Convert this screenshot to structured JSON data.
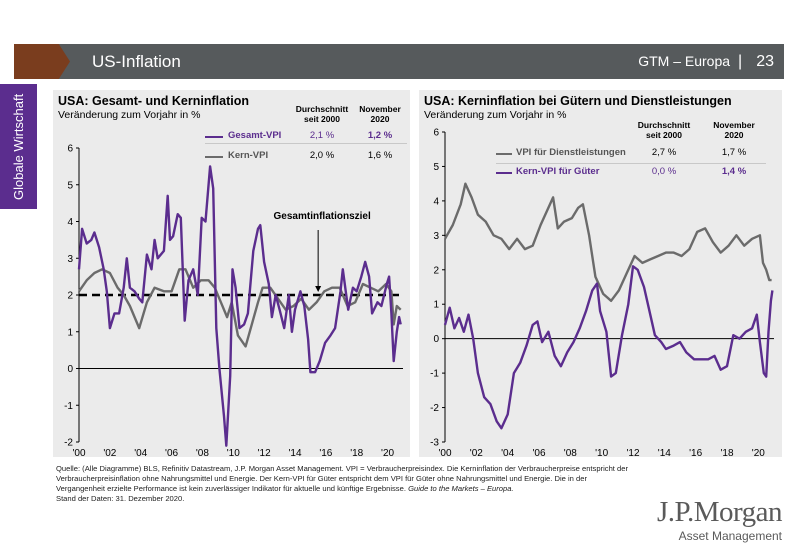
{
  "header": {
    "title": "US-Inflation",
    "right_label": "GTM – Europa",
    "separator": "|",
    "page_number": "23",
    "colors": {
      "bar": "#565a5c",
      "arrow": "#7a3d1e"
    }
  },
  "side_tab": {
    "label": "Globale Wirtschaft",
    "color": "#5b2d8e"
  },
  "source_text": "Quelle: (Alle Diagramme) BLS, Refinitiv Datastream, J.P. Morgan Asset Management. VPI = Verbraucherpreisindex. Die Kerninflation der Verbraucherpreise entspricht der Verbraucherpreisinflation ohne Nahrungsmittel und Energie. Der Kern-VPI für Güter entspricht dem VPI für Güter ohne Nahrungsmittel und Energie. Die in der Vergangenheit erzielte Performance ist kein zuverlässiger Indikator für aktuelle und künftige Ergebnisse.",
  "source_italic": "Guide to the Markets – Europa.",
  "source_date": "Stand der Daten: 31. Dezember 2020.",
  "logo": {
    "main": "J.P.Morgan",
    "sub": "Asset Management"
  },
  "chart_data": [
    {
      "type": "line",
      "title": "USA: Gesamt- und Kerninflation",
      "subtitle": "Veränderung zum Vorjahr in %",
      "ylim": [
        -2,
        6
      ],
      "yticks": [
        "6",
        "5",
        "4",
        "3",
        "2",
        "1",
        "0",
        "-1",
        "-2"
      ],
      "xlim": [
        2000,
        2021
      ],
      "xticks": [
        "'00",
        "'02",
        "'04",
        "'06",
        "'08",
        "'10",
        "'12",
        "'14",
        "'16",
        "'18",
        "'20"
      ],
      "legend_headers": [
        "Durchschnitt seit 2000",
        "November 2020"
      ],
      "annotation": "Gesamtinflationsziel",
      "reference_line": 2,
      "series": [
        {
          "name": "Gesamt-VPI",
          "avg": "2,1 %",
          "nov": "1,2 %",
          "color": "#5b2d8e",
          "points": [
            [
              2000,
              2.7
            ],
            [
              2000.2,
              3.8
            ],
            [
              2000.5,
              3.4
            ],
            [
              2000.8,
              3.5
            ],
            [
              2001,
              3.7
            ],
            [
              2001.3,
              3.3
            ],
            [
              2001.6,
              2.7
            ],
            [
              2001.8,
              2.1
            ],
            [
              2002,
              1.1
            ],
            [
              2002.3,
              1.5
            ],
            [
              2002.6,
              1.5
            ],
            [
              2002.9,
              2.2
            ],
            [
              2003.1,
              3.0
            ],
            [
              2003.3,
              2.2
            ],
            [
              2003.6,
              2.1
            ],
            [
              2003.9,
              1.9
            ],
            [
              2004.1,
              1.8
            ],
            [
              2004.4,
              3.1
            ],
            [
              2004.7,
              2.7
            ],
            [
              2004.9,
              3.5
            ],
            [
              2005.1,
              3.0
            ],
            [
              2005.5,
              3.2
            ],
            [
              2005.75,
              4.7
            ],
            [
              2005.9,
              3.5
            ],
            [
              2006.1,
              3.6
            ],
            [
              2006.4,
              4.2
            ],
            [
              2006.6,
              4.1
            ],
            [
              2006.85,
              1.3
            ],
            [
              2007.1,
              2.4
            ],
            [
              2007.4,
              2.7
            ],
            [
              2007.7,
              2.0
            ],
            [
              2007.95,
              4.1
            ],
            [
              2008.2,
              4.0
            ],
            [
              2008.5,
              5.5
            ],
            [
              2008.7,
              4.9
            ],
            [
              2008.9,
              1.1
            ],
            [
              2009.1,
              0.0
            ],
            [
              2009.4,
              -1.3
            ],
            [
              2009.55,
              -2.1
            ],
            [
              2009.8,
              -0.2
            ],
            [
              2009.95,
              2.7
            ],
            [
              2010.15,
              2.2
            ],
            [
              2010.4,
              1.1
            ],
            [
              2010.7,
              1.2
            ],
            [
              2010.95,
              1.5
            ],
            [
              2011.3,
              3.2
            ],
            [
              2011.6,
              3.8
            ],
            [
              2011.75,
              3.9
            ],
            [
              2012,
              2.9
            ],
            [
              2012.3,
              2.3
            ],
            [
              2012.5,
              1.4
            ],
            [
              2012.75,
              2.0
            ],
            [
              2013,
              1.6
            ],
            [
              2013.3,
              1.1
            ],
            [
              2013.6,
              2.0
            ],
            [
              2013.8,
              1.0
            ],
            [
              2014,
              1.6
            ],
            [
              2014.35,
              2.1
            ],
            [
              2014.6,
              1.7
            ],
            [
              2014.85,
              0.8
            ],
            [
              2015,
              -0.1
            ],
            [
              2015.3,
              -0.1
            ],
            [
              2015.6,
              0.2
            ],
            [
              2015.95,
              0.7
            ],
            [
              2016.3,
              0.9
            ],
            [
              2016.6,
              1.1
            ],
            [
              2016.95,
              2.1
            ],
            [
              2017.1,
              2.7
            ],
            [
              2017.45,
              1.6
            ],
            [
              2017.75,
              2.2
            ],
            [
              2018,
              2.1
            ],
            [
              2018.3,
              2.5
            ],
            [
              2018.55,
              2.9
            ],
            [
              2018.8,
              2.5
            ],
            [
              2019,
              1.5
            ],
            [
              2019.35,
              1.8
            ],
            [
              2019.6,
              1.7
            ],
            [
              2019.95,
              2.3
            ],
            [
              2020.1,
              2.5
            ],
            [
              2020.25,
              1.5
            ],
            [
              2020.4,
              0.2
            ],
            [
              2020.6,
              1.0
            ],
            [
              2020.75,
              1.4
            ],
            [
              2020.85,
              1.2
            ]
          ]
        },
        {
          "name": "Kern-VPI",
          "avg": "2,0 %",
          "nov": "1,6 %",
          "color": "#6b6b6b",
          "points": [
            [
              2000,
              2.1
            ],
            [
              2000.5,
              2.4
            ],
            [
              2001,
              2.6
            ],
            [
              2001.5,
              2.7
            ],
            [
              2002,
              2.6
            ],
            [
              2002.5,
              2.2
            ],
            [
              2002.9,
              2.0
            ],
            [
              2003.3,
              1.7
            ],
            [
              2003.9,
              1.1
            ],
            [
              2004.4,
              1.8
            ],
            [
              2004.9,
              2.2
            ],
            [
              2005.5,
              2.1
            ],
            [
              2006,
              2.1
            ],
            [
              2006.5,
              2.7
            ],
            [
              2006.9,
              2.7
            ],
            [
              2007.4,
              2.2
            ],
            [
              2007.9,
              2.4
            ],
            [
              2008.4,
              2.4
            ],
            [
              2008.8,
              2.2
            ],
            [
              2009.2,
              1.8
            ],
            [
              2009.6,
              1.4
            ],
            [
              2009.9,
              1.8
            ],
            [
              2010.3,
              0.9
            ],
            [
              2010.8,
              0.6
            ],
            [
              2011.2,
              1.2
            ],
            [
              2011.6,
              1.8
            ],
            [
              2011.9,
              2.2
            ],
            [
              2012.4,
              2.2
            ],
            [
              2012.9,
              1.9
            ],
            [
              2013.4,
              1.6
            ],
            [
              2013.9,
              1.7
            ],
            [
              2014.4,
              1.9
            ],
            [
              2014.9,
              1.6
            ],
            [
              2015.4,
              1.8
            ],
            [
              2015.9,
              2.1
            ],
            [
              2016.4,
              2.2
            ],
            [
              2016.9,
              2.2
            ],
            [
              2017.4,
              1.7
            ],
            [
              2017.9,
              1.8
            ],
            [
              2018.4,
              2.3
            ],
            [
              2018.9,
              2.2
            ],
            [
              2019.4,
              2.1
            ],
            [
              2019.9,
              2.3
            ],
            [
              2020.25,
              2.1
            ],
            [
              2020.4,
              1.2
            ],
            [
              2020.6,
              1.7
            ],
            [
              2020.85,
              1.6
            ]
          ]
        }
      ]
    },
    {
      "type": "line",
      "title": "USA: Kerninflation bei Gütern und Dienstleistungen",
      "subtitle": "Veränderung zum Vorjahr in %",
      "ylim": [
        -3,
        6
      ],
      "yticks": [
        "6",
        "5",
        "4",
        "3",
        "2",
        "1",
        "0",
        "-1",
        "-2",
        "-3"
      ],
      "xlim": [
        2000,
        2021
      ],
      "xticks": [
        "'00",
        "'02",
        "'04",
        "'06",
        "'08",
        "'10",
        "'12",
        "'14",
        "'16",
        "'18",
        "'20"
      ],
      "legend_headers": [
        "Durchschnitt seit 2000",
        "November 2020"
      ],
      "series": [
        {
          "name": "VPI für Dienstleistungen",
          "avg": "2,7 %",
          "nov": "1,7 %",
          "color": "#6b6b6b",
          "points": [
            [
              2000,
              2.9
            ],
            [
              2000.5,
              3.3
            ],
            [
              2001,
              3.9
            ],
            [
              2001.3,
              4.5
            ],
            [
              2001.7,
              4.1
            ],
            [
              2002.1,
              3.6
            ],
            [
              2002.6,
              3.4
            ],
            [
              2003.1,
              3.0
            ],
            [
              2003.6,
              2.9
            ],
            [
              2004.1,
              2.6
            ],
            [
              2004.6,
              2.9
            ],
            [
              2005.1,
              2.6
            ],
            [
              2005.6,
              2.7
            ],
            [
              2006.1,
              3.3
            ],
            [
              2006.6,
              3.8
            ],
            [
              2006.9,
              4.1
            ],
            [
              2007.2,
              3.2
            ],
            [
              2007.6,
              3.4
            ],
            [
              2008.1,
              3.5
            ],
            [
              2008.5,
              3.8
            ],
            [
              2008.8,
              3.9
            ],
            [
              2009.2,
              3.0
            ],
            [
              2009.6,
              1.8
            ],
            [
              2010.1,
              1.3
            ],
            [
              2010.6,
              1.1
            ],
            [
              2011.1,
              1.4
            ],
            [
              2011.6,
              1.9
            ],
            [
              2012.1,
              2.4
            ],
            [
              2012.6,
              2.2
            ],
            [
              2013.1,
              2.3
            ],
            [
              2013.6,
              2.4
            ],
            [
              2014.1,
              2.5
            ],
            [
              2014.6,
              2.5
            ],
            [
              2015.1,
              2.4
            ],
            [
              2015.6,
              2.6
            ],
            [
              2016.1,
              3.1
            ],
            [
              2016.6,
              3.2
            ],
            [
              2017.1,
              2.8
            ],
            [
              2017.6,
              2.5
            ],
            [
              2018.1,
              2.7
            ],
            [
              2018.6,
              3.0
            ],
            [
              2019.1,
              2.7
            ],
            [
              2019.6,
              2.9
            ],
            [
              2020.1,
              3.0
            ],
            [
              2020.3,
              2.2
            ],
            [
              2020.5,
              2.0
            ],
            [
              2020.7,
              1.7
            ],
            [
              2020.85,
              1.7
            ]
          ]
        },
        {
          "name": "Kern-VPI für Güter",
          "avg": "0,0 %",
          "nov": "1,4 %",
          "color": "#5b2d8e",
          "points": [
            [
              2000,
              0.4
            ],
            [
              2000.3,
              0.9
            ],
            [
              2000.6,
              0.3
            ],
            [
              2000.9,
              0.6
            ],
            [
              2001.2,
              0.2
            ],
            [
              2001.5,
              0.7
            ],
            [
              2001.8,
              0.0
            ],
            [
              2002.1,
              -1.0
            ],
            [
              2002.5,
              -1.7
            ],
            [
              2002.9,
              -1.9
            ],
            [
              2003.3,
              -2.4
            ],
            [
              2003.6,
              -2.6
            ],
            [
              2004,
              -2.2
            ],
            [
              2004.4,
              -1.0
            ],
            [
              2004.8,
              -0.7
            ],
            [
              2005.2,
              -0.2
            ],
            [
              2005.6,
              0.4
            ],
            [
              2005.9,
              0.5
            ],
            [
              2006.2,
              -0.1
            ],
            [
              2006.6,
              0.2
            ],
            [
              2007,
              -0.5
            ],
            [
              2007.4,
              -0.8
            ],
            [
              2007.8,
              -0.4
            ],
            [
              2008.2,
              -0.1
            ],
            [
              2008.6,
              0.3
            ],
            [
              2009,
              0.8
            ],
            [
              2009.4,
              1.4
            ],
            [
              2009.7,
              1.6
            ],
            [
              2009.9,
              0.8
            ],
            [
              2010.3,
              0.2
            ],
            [
              2010.6,
              -1.1
            ],
            [
              2010.9,
              -1.0
            ],
            [
              2011.3,
              0.1
            ],
            [
              2011.7,
              1.0
            ],
            [
              2012,
              2.1
            ],
            [
              2012.3,
              2.0
            ],
            [
              2012.7,
              1.5
            ],
            [
              2013,
              0.9
            ],
            [
              2013.4,
              0.1
            ],
            [
              2013.8,
              -0.1
            ],
            [
              2014.1,
              -0.3
            ],
            [
              2014.6,
              -0.2
            ],
            [
              2015,
              -0.1
            ],
            [
              2015.4,
              -0.4
            ],
            [
              2015.9,
              -0.6
            ],
            [
              2016.3,
              -0.6
            ],
            [
              2016.8,
              -0.6
            ],
            [
              2017.2,
              -0.5
            ],
            [
              2017.6,
              -0.9
            ],
            [
              2018,
              -0.8
            ],
            [
              2018.4,
              0.1
            ],
            [
              2018.8,
              0.0
            ],
            [
              2019.2,
              0.2
            ],
            [
              2019.6,
              0.3
            ],
            [
              2019.9,
              0.7
            ],
            [
              2020.1,
              -0.1
            ],
            [
              2020.35,
              -1.0
            ],
            [
              2020.5,
              -1.1
            ],
            [
              2020.65,
              0.2
            ],
            [
              2020.8,
              1.1
            ],
            [
              2020.9,
              1.4
            ]
          ]
        }
      ]
    }
  ]
}
